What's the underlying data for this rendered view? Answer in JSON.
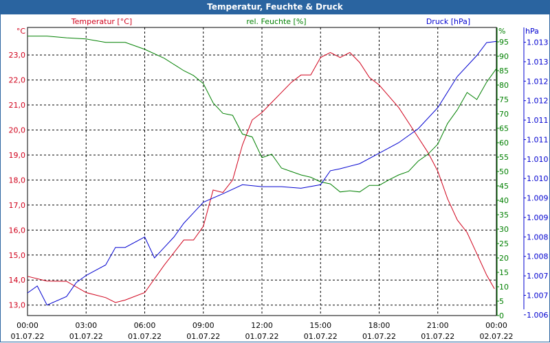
{
  "window": {
    "title": "Temperatur, Feuchte & Druck"
  },
  "colors": {
    "temperature": "#d0001a",
    "humidity": "#008000",
    "pressure": "#0000d0",
    "title_bar": "#2a64a0",
    "grid": "#000000"
  },
  "chart_data": {
    "type": "line",
    "title": "Temperatur, Feuchte & Druck",
    "x_unit": "hours since 01.07.22 00:00",
    "xlim": [
      0,
      24
    ],
    "x_ticks": [
      {
        "time": "00:00",
        "date": "01.07.22"
      },
      {
        "time": "03:00",
        "date": "01.07.22"
      },
      {
        "time": "06:00",
        "date": "01.07.22"
      },
      {
        "time": "09:00",
        "date": "01.07.22"
      },
      {
        "time": "12:00",
        "date": "01.07.22"
      },
      {
        "time": "15:00",
        "date": "01.07.22"
      },
      {
        "time": "18:00",
        "date": "01.07.22"
      },
      {
        "time": "21:00",
        "date": "01.07.22"
      },
      {
        "time": "00:00",
        "date": "02.07.22"
      }
    ],
    "axes": {
      "temperature": {
        "legend": "Temperatur [°C]",
        "unit": "°C",
        "ylim": [
          12.58,
          24.1
        ],
        "ticks": [
          "13,0",
          "14,0",
          "15,0",
          "16,0",
          "17,0",
          "18,0",
          "19,0",
          "20,0",
          "21,0",
          "22,0",
          "23,0"
        ],
        "tick_values": [
          13,
          14,
          15,
          16,
          17,
          18,
          19,
          20,
          21,
          22,
          23
        ]
      },
      "humidity": {
        "legend": "rel. Feuchte [%]",
        "unit": "%",
        "ylim": [
          0,
          100
        ],
        "ticks": [
          "0",
          "5",
          "10",
          "15",
          "20",
          "25",
          "30",
          "35",
          "40",
          "45",
          "50",
          "55",
          "60",
          "65",
          "70",
          "75",
          "80",
          "85",
          "90",
          "95"
        ]
      },
      "pressure": {
        "legend": "Druck [hPa]",
        "unit": "hPa",
        "ylim": [
          1.00598,
          1.01338
        ],
        "ticks": [
          "1.006",
          "1.007",
          "1.007",
          "1.008",
          "1.008",
          "1.009",
          "1.009",
          "1.010",
          "1.010",
          "1.011",
          "1.011",
          "1.012",
          "1.012",
          "1.013",
          "1.013"
        ],
        "tick_values": [
          1.006,
          1.0065,
          1.007,
          1.0075,
          1.008,
          1.0085,
          1.009,
          1.0095,
          1.01,
          1.0105,
          1.011,
          1.0115,
          1.012,
          1.0125,
          1.013
        ]
      }
    },
    "grid": true,
    "series": [
      {
        "name": "Temperatur [°C]",
        "axis": "temperature",
        "x": [
          0,
          1,
          2,
          3,
          4,
          4.5,
          5,
          6,
          7,
          8,
          8.5,
          9,
          9.5,
          10,
          10.5,
          11,
          11.5,
          12,
          12.5,
          13,
          13.5,
          14,
          14.5,
          15,
          15.5,
          16,
          16.5,
          17,
          17.5,
          18,
          18.5,
          19,
          19.5,
          20,
          20.5,
          21,
          21.5,
          22,
          22.5,
          23,
          23.5,
          23.9
        ],
        "values": [
          14.15,
          13.96,
          13.95,
          13.5,
          13.3,
          13.1,
          13.2,
          13.5,
          14.6,
          15.6,
          15.6,
          16.15,
          17.6,
          17.5,
          18.0,
          19.4,
          20.4,
          20.7,
          21.1,
          21.5,
          21.9,
          22.2,
          22.2,
          22.9,
          23.1,
          22.9,
          23.1,
          22.7,
          22.1,
          21.8,
          21.35,
          20.9,
          20.3,
          19.7,
          19.1,
          18.35,
          17.25,
          16.4,
          15.9,
          15.05,
          14.2,
          13.65
        ]
      },
      {
        "name": "rel. Feuchte [%]",
        "axis": "humidity",
        "x": [
          0,
          1,
          2,
          3,
          4,
          5,
          6,
          7,
          8,
          8.5,
          9,
          9.5,
          10,
          10.5,
          11,
          11.5,
          12,
          12.5,
          13,
          13.5,
          14,
          14.5,
          15,
          15.5,
          16,
          16.5,
          17,
          17.5,
          18,
          18.5,
          19,
          19.5,
          20,
          20.5,
          21,
          21.5,
          22,
          22.5,
          23,
          23.5,
          24
        ],
        "values": [
          97,
          97,
          96.4,
          96,
          94.8,
          94.8,
          92.4,
          89.3,
          85,
          83.3,
          80.5,
          73.8,
          70.2,
          69.5,
          63,
          62,
          54.8,
          56,
          51.2,
          50,
          48.8,
          48,
          46.4,
          45.7,
          42.9,
          43.3,
          42.9,
          45.2,
          45.2,
          47.1,
          48.8,
          50,
          53.6,
          56,
          59.5,
          66.7,
          71.4,
          77.4,
          75,
          81,
          85.7
        ]
      },
      {
        "name": "Druck [hPa]",
        "axis": "pressure",
        "x": [
          0,
          0.5,
          1,
          2,
          2.5,
          3,
          4,
          4.5,
          5,
          6,
          6.5,
          7,
          7.5,
          8,
          8.5,
          9,
          10,
          11,
          12,
          13,
          14,
          15,
          15.5,
          16,
          17,
          18,
          19,
          20,
          21,
          22,
          23,
          23.5,
          24
        ],
        "values": [
          1.00656,
          1.00674,
          1.00625,
          1.00647,
          1.00683,
          1.00701,
          1.00728,
          1.00773,
          1.00773,
          1.008,
          1.00746,
          1.00773,
          1.008,
          1.00835,
          1.00862,
          1.00889,
          1.00911,
          1.00934,
          1.00929,
          1.00929,
          1.00925,
          1.00934,
          1.0097,
          1.00975,
          1.00988,
          1.01015,
          1.01042,
          1.01078,
          1.01132,
          1.01212,
          1.01266,
          1.01299,
          1.01302
        ]
      }
    ]
  }
}
